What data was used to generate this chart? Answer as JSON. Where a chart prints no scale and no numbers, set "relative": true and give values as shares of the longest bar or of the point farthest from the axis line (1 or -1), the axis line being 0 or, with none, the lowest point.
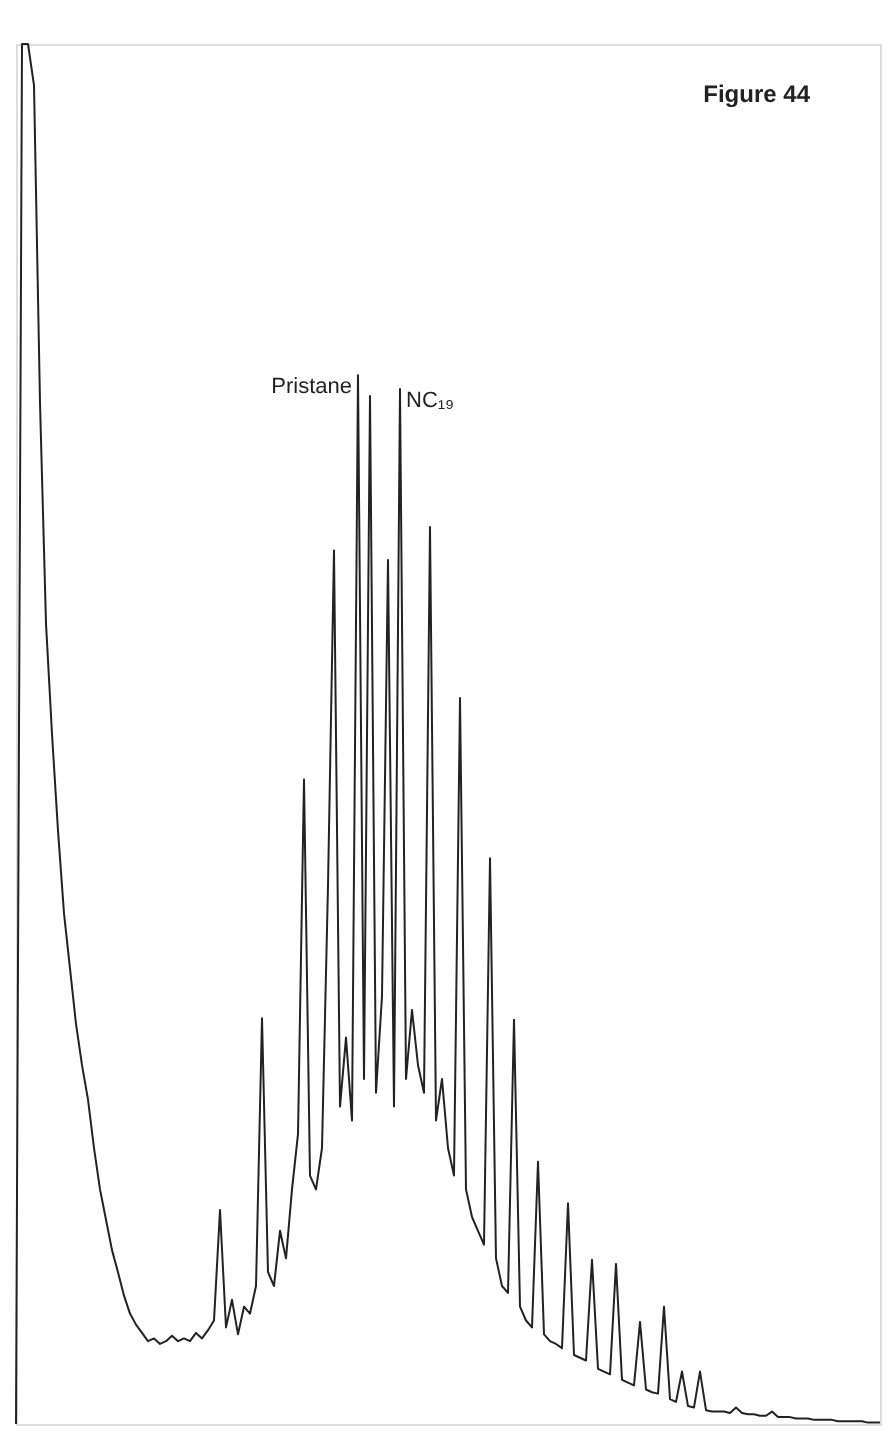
{
  "chart_data": {
    "type": "line",
    "title": "Figure 44",
    "relative": true,
    "annotations": [
      "Pristane",
      "NC₁₉"
    ],
    "categories": [
      null,
      null,
      null,
      null,
      null,
      null,
      null,
      null,
      null,
      null,
      null,
      null,
      null,
      null,
      null,
      null,
      null,
      null,
      null,
      null,
      null,
      null,
      null,
      null,
      null,
      null,
      null,
      null,
      null,
      null,
      null,
      null,
      null,
      null,
      null,
      null,
      null,
      null,
      null,
      null,
      null,
      null,
      null,
      null,
      null,
      null,
      null,
      null,
      null,
      null,
      null,
      null,
      null,
      null,
      null,
      null,
      null,
      null,
      null,
      null,
      null,
      null,
      null,
      null,
      null,
      null,
      null,
      null,
      null,
      null,
      null,
      null,
      null,
      null,
      null,
      null,
      null,
      null,
      null,
      null,
      null,
      null,
      null,
      null,
      null,
      null,
      null,
      null,
      null,
      null,
      null,
      null,
      null,
      null,
      null,
      null,
      null,
      null,
      null,
      null,
      null,
      null,
      null,
      null,
      null,
      null,
      null,
      null,
      null,
      null,
      null,
      null,
      null,
      null,
      null,
      null,
      null,
      null,
      null,
      null,
      null,
      null,
      null,
      null,
      null,
      null,
      null,
      null,
      null,
      null,
      null,
      null,
      null,
      null,
      null,
      null,
      null,
      null,
      null,
      null,
      null,
      null,
      null,
      null,
      null
    ],
    "series": [
      {
        "color": "#222222",
        "values": [
          0,
          1,
          1,
          0.97,
          0.74,
          0.58,
          0.5,
          0.43,
          0.37,
          0.33,
          0.29,
          0.26,
          0.235,
          0.2,
          0.17,
          0.148,
          0.126,
          0.11,
          0.093,
          0.08,
          0.072,
          0.066,
          0.06,
          0.062,
          0.058,
          0.06,
          0.064,
          0.06,
          0.062,
          0.06,
          0.066,
          0.062,
          0.068,
          0.075,
          0.155,
          0.07,
          0.09,
          0.065,
          0.085,
          0.08,
          0.1,
          0.294,
          0.11,
          0.1,
          0.14,
          0.12,
          0.17,
          0.21,
          0.467,
          0.18,
          0.17,
          0.2,
          0.39,
          0.633,
          0.23,
          0.28,
          0.22,
          0.76,
          0.25,
          0.745,
          0.24,
          0.31,
          0.626,
          0.23,
          0.75,
          0.25,
          0.3,
          0.26,
          0.24,
          0.65,
          0.22,
          0.25,
          0.2,
          0.18,
          0.526,
          0.17,
          0.15,
          0.14,
          0.13,
          0.41,
          0.12,
          0.1,
          0.095,
          0.293,
          0.085,
          0.075,
          0.07,
          0.19,
          0.065,
          0.06,
          0.058,
          0.055,
          0.16,
          0.05,
          0.048,
          0.046,
          0.119,
          0.04,
          0.038,
          0.036,
          0.116,
          0.032,
          0.03,
          0.028,
          0.074,
          0.025,
          0.023,
          0.022,
          0.085,
          0.018,
          0.016,
          0.038,
          0.013,
          0.012,
          0.038,
          0.01,
          0.009,
          0.009,
          0.009,
          0.008,
          0.012,
          0.008,
          0.007,
          0.007,
          0.006,
          0.006,
          0.009,
          0.005,
          0.005,
          0.005,
          0.004,
          0.004,
          0.004,
          0.003,
          0.003,
          0.003,
          0.003,
          0.002,
          0.002,
          0.002,
          0.002,
          0.002,
          0.001,
          0.001,
          0.001
        ]
      }
    ]
  }
}
